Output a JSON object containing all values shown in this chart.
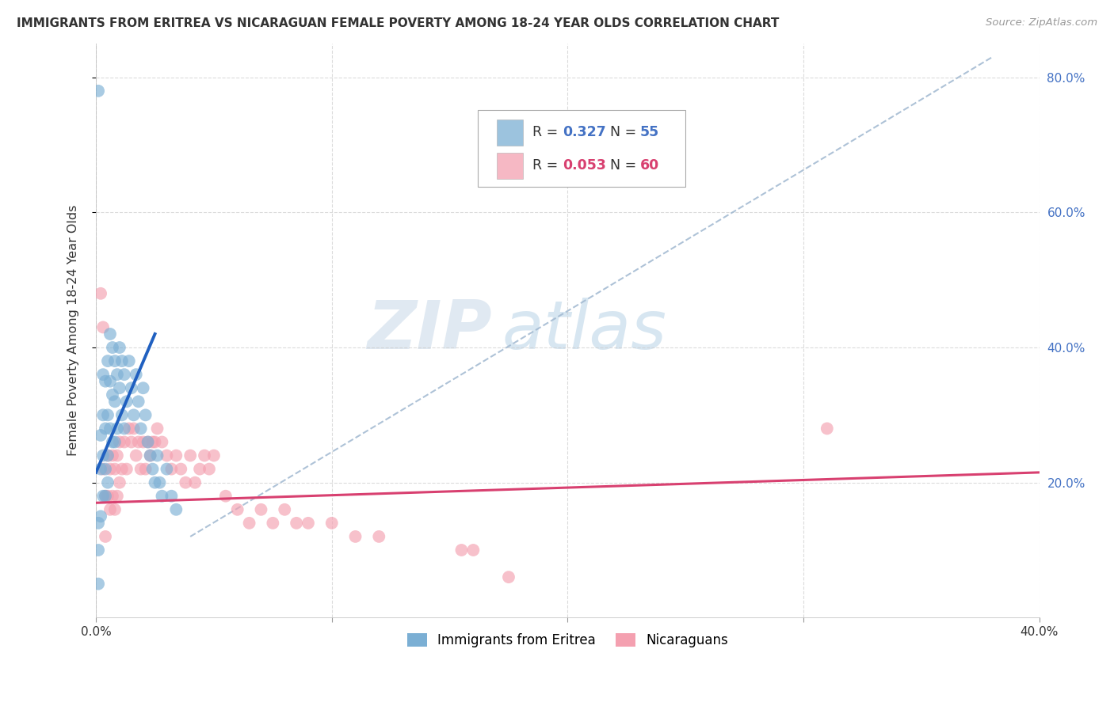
{
  "title": "IMMIGRANTS FROM ERITREA VS NICARAGUAN FEMALE POVERTY AMONG 18-24 YEAR OLDS CORRELATION CHART",
  "source": "Source: ZipAtlas.com",
  "ylabel": "Female Poverty Among 18-24 Year Olds",
  "xlim": [
    0.0,
    0.4
  ],
  "ylim": [
    0.0,
    0.85
  ],
  "xtick_vals": [
    0.0,
    0.1,
    0.2,
    0.3,
    0.4
  ],
  "xtick_labels": [
    "0.0%",
    "",
    "",
    "",
    "40.0%"
  ],
  "ytick_vals": [
    0.2,
    0.4,
    0.6,
    0.8
  ],
  "ytick_labels_right": [
    "20.0%",
    "40.0%",
    "60.0%",
    "80.0%"
  ],
  "blue_color": "#7bafd4",
  "pink_color": "#f4a0b0",
  "blue_line_color": "#2060c0",
  "pink_line_color": "#d84070",
  "dashed_line_color": "#a0b8d0",
  "watermark_zip": "ZIP",
  "watermark_atlas": "atlas",
  "background_color": "#ffffff",
  "grid_color": "#cccccc",
  "blue_scatter_x": [
    0.001,
    0.002,
    0.002,
    0.002,
    0.003,
    0.003,
    0.003,
    0.003,
    0.004,
    0.004,
    0.004,
    0.004,
    0.005,
    0.005,
    0.005,
    0.005,
    0.006,
    0.006,
    0.006,
    0.007,
    0.007,
    0.007,
    0.008,
    0.008,
    0.008,
    0.009,
    0.009,
    0.01,
    0.01,
    0.011,
    0.011,
    0.012,
    0.012,
    0.013,
    0.014,
    0.015,
    0.016,
    0.017,
    0.018,
    0.019,
    0.02,
    0.021,
    0.022,
    0.023,
    0.024,
    0.025,
    0.026,
    0.027,
    0.028,
    0.03,
    0.032,
    0.034,
    0.001,
    0.001,
    0.001
  ],
  "blue_scatter_y": [
    0.78,
    0.27,
    0.22,
    0.15,
    0.36,
    0.3,
    0.24,
    0.18,
    0.35,
    0.28,
    0.22,
    0.18,
    0.38,
    0.3,
    0.24,
    0.2,
    0.42,
    0.35,
    0.28,
    0.4,
    0.33,
    0.26,
    0.38,
    0.32,
    0.26,
    0.36,
    0.28,
    0.4,
    0.34,
    0.38,
    0.3,
    0.36,
    0.28,
    0.32,
    0.38,
    0.34,
    0.3,
    0.36,
    0.32,
    0.28,
    0.34,
    0.3,
    0.26,
    0.24,
    0.22,
    0.2,
    0.24,
    0.2,
    0.18,
    0.22,
    0.18,
    0.16,
    0.14,
    0.1,
    0.05
  ],
  "pink_scatter_x": [
    0.002,
    0.003,
    0.003,
    0.004,
    0.004,
    0.005,
    0.005,
    0.006,
    0.006,
    0.007,
    0.007,
    0.008,
    0.008,
    0.009,
    0.009,
    0.01,
    0.01,
    0.011,
    0.012,
    0.013,
    0.014,
    0.015,
    0.016,
    0.017,
    0.018,
    0.019,
    0.02,
    0.021,
    0.022,
    0.023,
    0.024,
    0.025,
    0.026,
    0.028,
    0.03,
    0.032,
    0.034,
    0.036,
    0.038,
    0.04,
    0.042,
    0.044,
    0.046,
    0.048,
    0.05,
    0.055,
    0.06,
    0.065,
    0.07,
    0.075,
    0.08,
    0.085,
    0.09,
    0.1,
    0.11,
    0.12,
    0.155,
    0.16,
    0.175,
    0.31
  ],
  "pink_scatter_y": [
    0.48,
    0.43,
    0.22,
    0.18,
    0.12,
    0.24,
    0.18,
    0.22,
    0.16,
    0.24,
    0.18,
    0.22,
    0.16,
    0.24,
    0.18,
    0.26,
    0.2,
    0.22,
    0.26,
    0.22,
    0.28,
    0.26,
    0.28,
    0.24,
    0.26,
    0.22,
    0.26,
    0.22,
    0.26,
    0.24,
    0.26,
    0.26,
    0.28,
    0.26,
    0.24,
    0.22,
    0.24,
    0.22,
    0.2,
    0.24,
    0.2,
    0.22,
    0.24,
    0.22,
    0.24,
    0.18,
    0.16,
    0.14,
    0.16,
    0.14,
    0.16,
    0.14,
    0.14,
    0.14,
    0.12,
    0.12,
    0.1,
    0.1,
    0.06,
    0.28
  ],
  "blue_trendline_x": [
    0.0,
    0.025
  ],
  "blue_trendline_y": [
    0.215,
    0.42
  ],
  "dashed_line_x": [
    0.04,
    0.38
  ],
  "dashed_line_y": [
    0.12,
    0.83
  ],
  "pink_trendline_x": [
    0.0,
    0.4
  ],
  "pink_trendline_y": [
    0.17,
    0.215
  ]
}
